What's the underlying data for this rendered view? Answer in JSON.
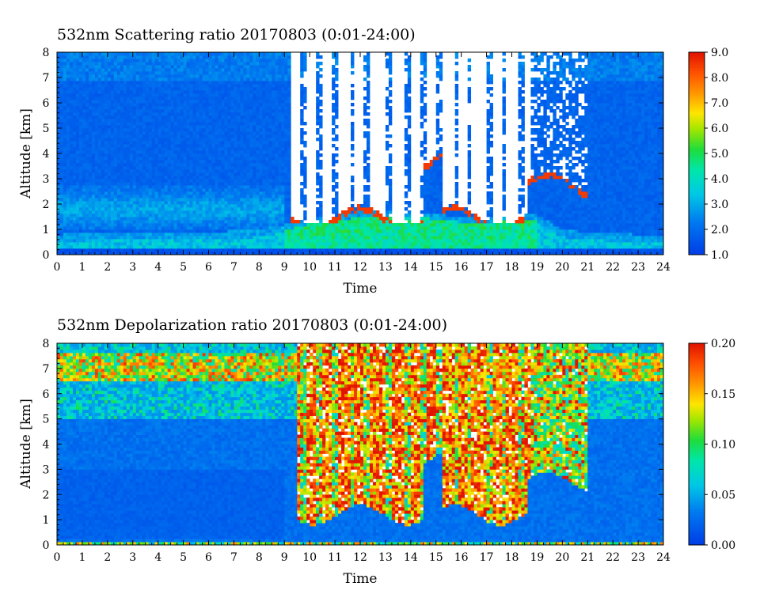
{
  "chart_data": [
    {
      "type": "heatmap",
      "title": "532nm Scattering ratio  20170803 (0:01-24:00)",
      "xlabel": "Time",
      "ylabel": "Altitude [km]",
      "x_ticks": [
        "0",
        "1",
        "2",
        "3",
        "4",
        "5",
        "6",
        "7",
        "8",
        "9",
        "10",
        "11",
        "12",
        "13",
        "14",
        "15",
        "16",
        "17",
        "18",
        "19",
        "20",
        "21",
        "22",
        "23",
        "24"
      ],
      "y_ticks": [
        "0",
        "1",
        "2",
        "3",
        "4",
        "5",
        "6",
        "7",
        "8"
      ],
      "xlim": [
        0,
        24
      ],
      "ylim": [
        0,
        8
      ],
      "colorbar": {
        "ticks": [
          "1.0",
          "2.0",
          "3.0",
          "4.0",
          "5.0",
          "6.0",
          "7.0",
          "8.0",
          "9.0"
        ],
        "range": [
          1.0,
          9.0
        ]
      },
      "features": {
        "boundary_layer_top_km_by_hour": [
          0.5,
          0.55,
          0.6,
          0.6,
          0.6,
          0.6,
          0.6,
          0.65,
          0.7,
          0.9,
          1.1,
          1.25,
          1.4,
          1.45,
          1.45,
          1.3,
          1.2,
          1.2,
          1.25,
          1.3,
          0.7,
          0.6,
          0.55,
          0.5,
          0.5
        ],
        "cloud_gaps_hours": [
          [
            9.6,
            9.9
          ],
          [
            10.3,
            10.55
          ],
          [
            10.85,
            11.1
          ],
          [
            11.6,
            11.75
          ],
          [
            12.1,
            12.4
          ],
          [
            12.95,
            13.3
          ],
          [
            13.8,
            13.95
          ],
          [
            14.4,
            14.6
          ],
          [
            15.0,
            15.2
          ],
          [
            15.7,
            15.9
          ],
          [
            16.3,
            16.4
          ],
          [
            17.0,
            17.2
          ],
          [
            17.6,
            17.8
          ],
          [
            18.2,
            18.5
          ],
          [
            18.8,
            21.0
          ]
        ]
      }
    },
    {
      "type": "heatmap",
      "title": "532nm Depolarization ratio  20170803 (0:01-24:00)",
      "xlabel": "Time",
      "ylabel": "Altitude [km]",
      "x_ticks": [
        "0",
        "1",
        "2",
        "3",
        "4",
        "5",
        "6",
        "7",
        "8",
        "9",
        "10",
        "11",
        "12",
        "13",
        "14",
        "15",
        "16",
        "17",
        "18",
        "19",
        "20",
        "21",
        "22",
        "23",
        "24"
      ],
      "y_ticks": [
        "0",
        "1",
        "2",
        "3",
        "4",
        "5",
        "6",
        "7",
        "8"
      ],
      "xlim": [
        0,
        24
      ],
      "ylim": [
        0,
        8
      ],
      "colorbar": {
        "ticks": [
          "0.00",
          "0.05",
          "0.10",
          "0.15",
          "0.20"
        ],
        "range": [
          0.0,
          0.2
        ]
      },
      "features": {
        "high_depol_region_hours": [
          9.5,
          21.0
        ],
        "high_depol_min_alt_km": 1.2
      }
    }
  ]
}
